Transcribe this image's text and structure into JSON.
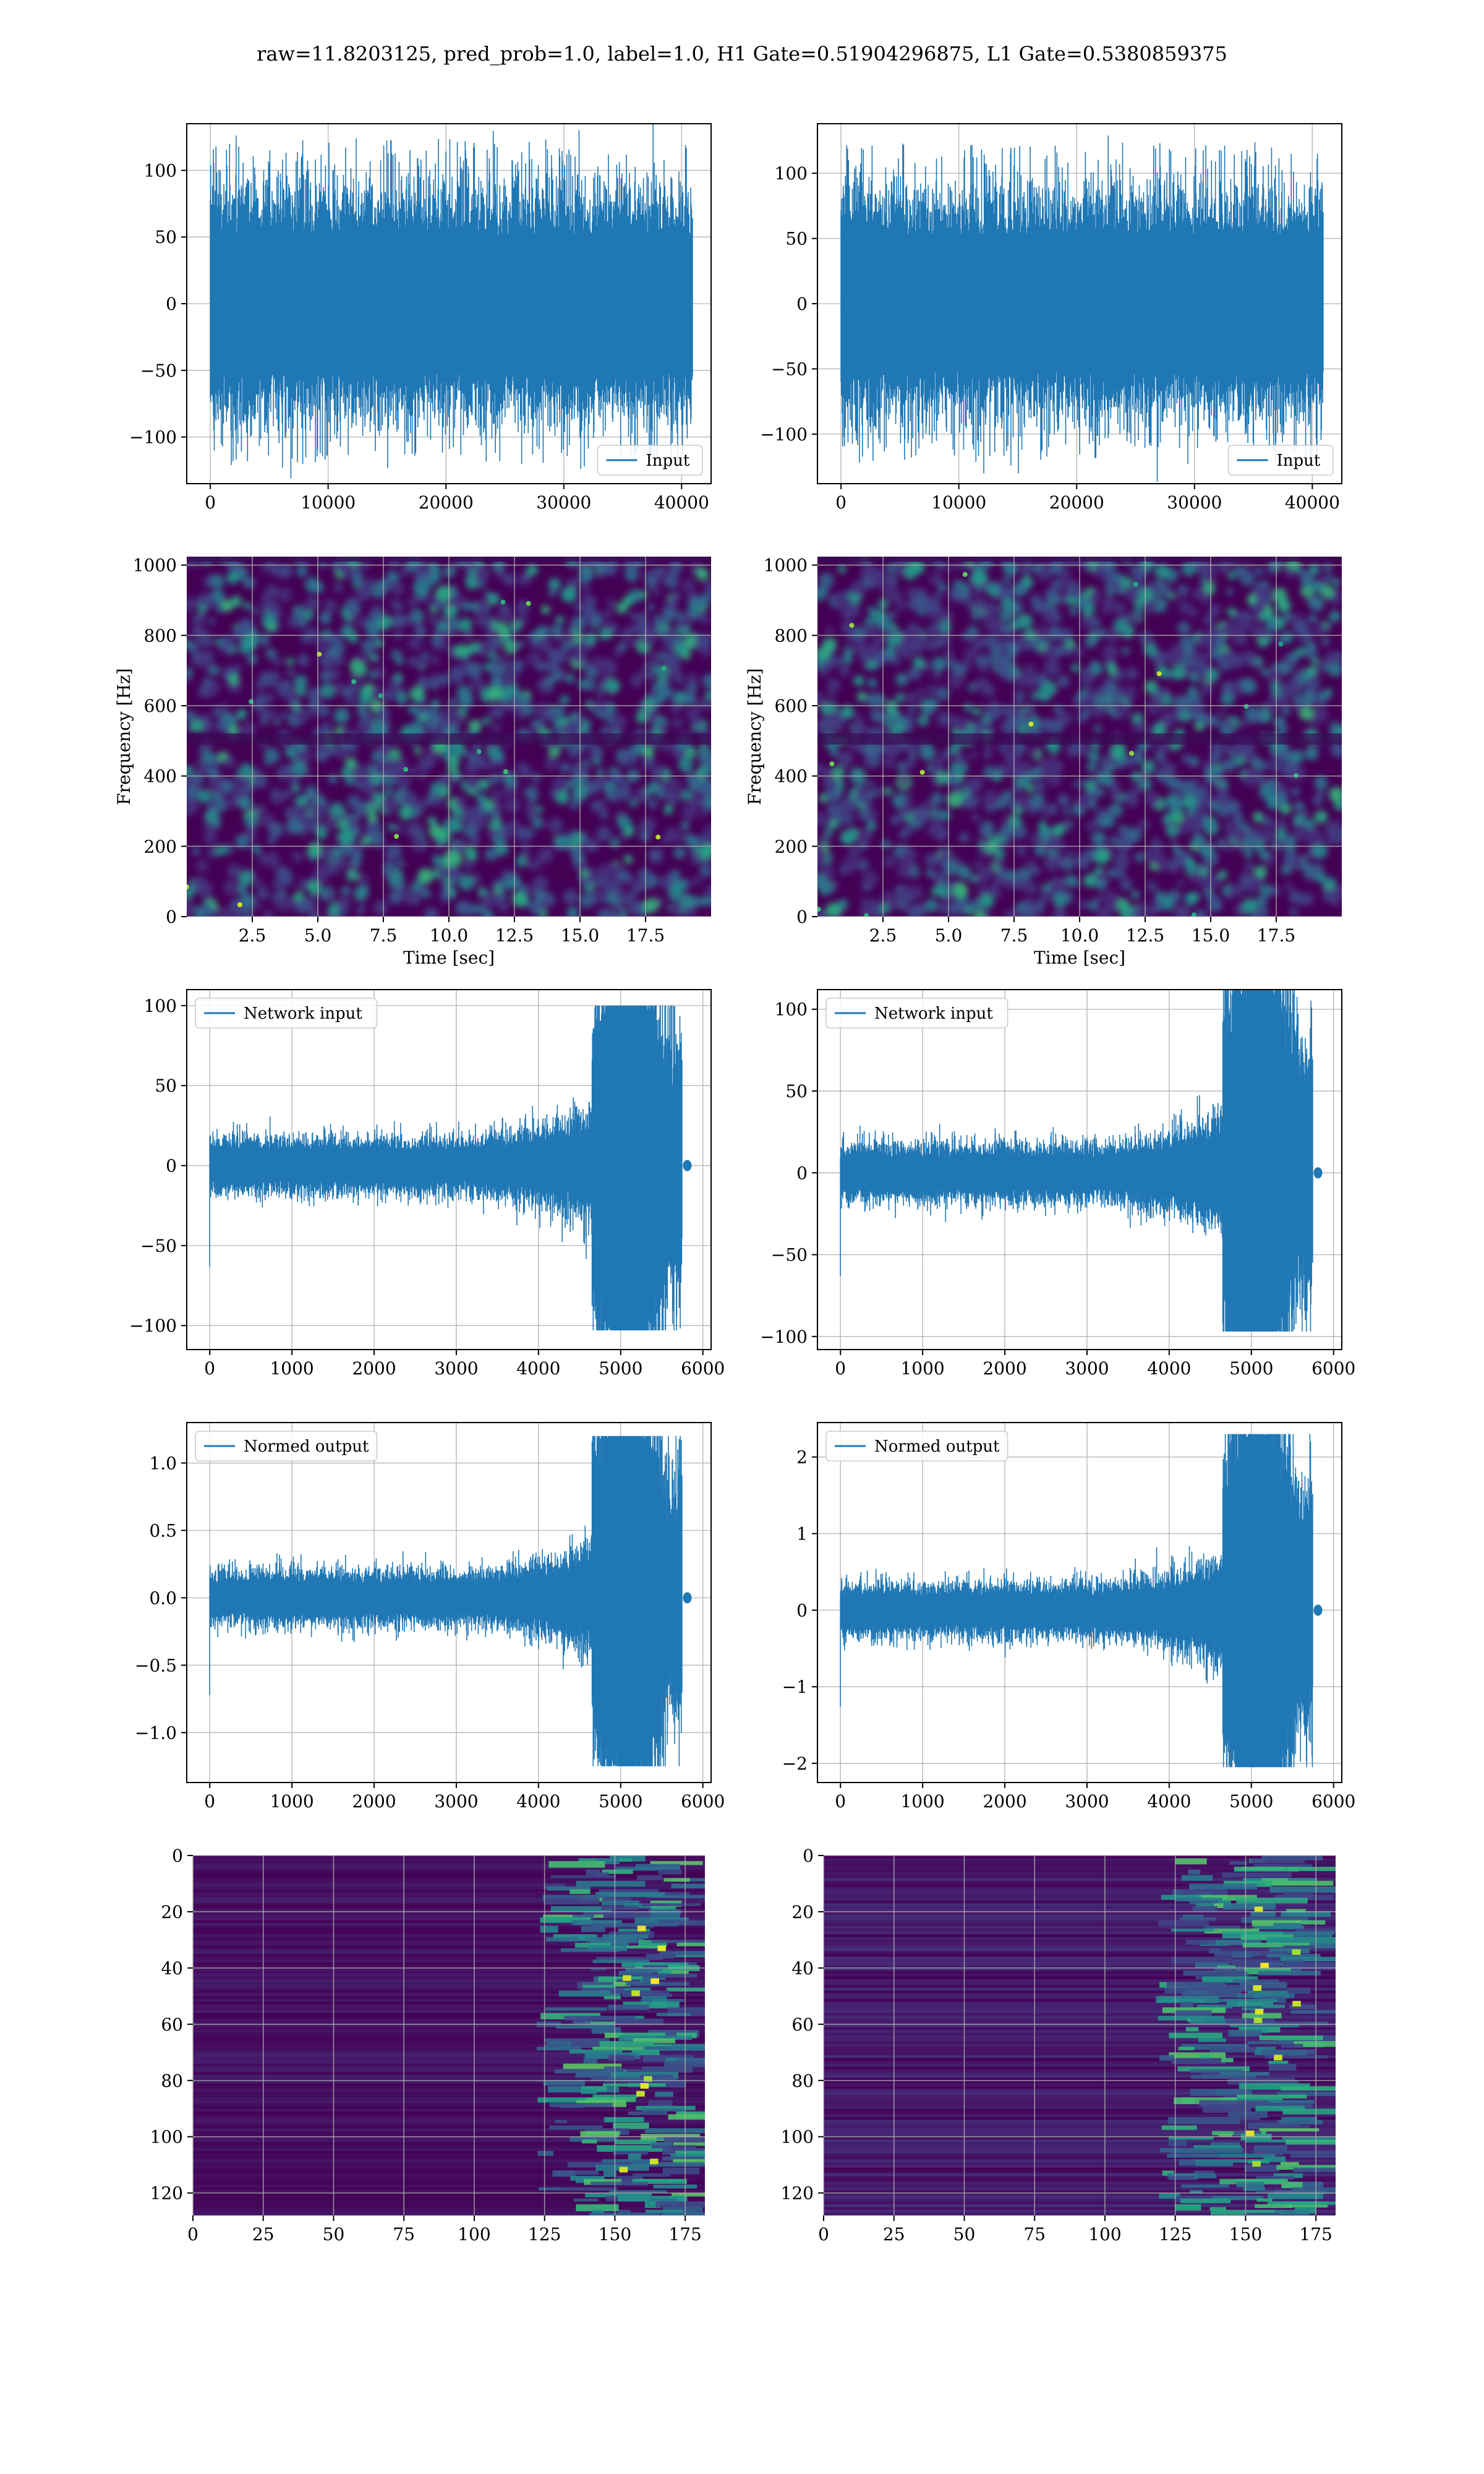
{
  "figure": {
    "suptitle": "raw=11.8203125, pred_prob=1.0, label=1.0, H1 Gate=0.51904296875, L1 Gate=0.5380859375"
  },
  "colors": {
    "line": "#1f77b4",
    "grid": "#b0b0b0",
    "viridis_low": "#440154"
  },
  "chart_data": [
    {
      "id": "h1-input",
      "type": "line",
      "legend": "Input",
      "legend_loc": "lower right",
      "grid": true,
      "xlim": [
        -2000,
        42500
      ],
      "ylim": [
        -135,
        135
      ],
      "xticks": [
        0,
        10000,
        20000,
        30000,
        40000
      ],
      "xtick_labels": [
        "0",
        "10000",
        "20000",
        "30000",
        "40000"
      ],
      "yticks": [
        -100,
        -50,
        0,
        50,
        100
      ],
      "ytick_labels": [
        "−100",
        "−50",
        "0",
        "50",
        "100"
      ],
      "signal": {
        "n": 40960,
        "noise_std": 30,
        "peak_max": 124,
        "peak_min": -124
      }
    },
    {
      "id": "l1-input",
      "type": "line",
      "legend": "Input",
      "legend_loc": "lower right",
      "grid": true,
      "xlim": [
        -2000,
        42500
      ],
      "ylim": [
        -138,
        138
      ],
      "xticks": [
        0,
        10000,
        20000,
        30000,
        40000
      ],
      "xtick_labels": [
        "0",
        "10000",
        "20000",
        "30000",
        "40000"
      ],
      "yticks": [
        -100,
        -50,
        0,
        50,
        100
      ],
      "ytick_labels": [
        "−100",
        "−50",
        "0",
        "50",
        "100"
      ],
      "signal": {
        "n": 40960,
        "noise_std": 30,
        "peak_max": 124,
        "peak_min": -122
      }
    },
    {
      "id": "h1-spectrogram",
      "type": "heatmap",
      "grid": true,
      "xlim": [
        0,
        20
      ],
      "ylim": [
        0,
        1024
      ],
      "xticks": [
        2.5,
        5.0,
        7.5,
        10.0,
        12.5,
        15.0,
        17.5
      ],
      "xtick_labels": [
        "2.5",
        "5.0",
        "7.5",
        "10.0",
        "12.5",
        "15.0",
        "17.5"
      ],
      "yticks": [
        0,
        200,
        400,
        600,
        800,
        1000
      ],
      "ytick_labels": [
        "0",
        "200",
        "400",
        "600",
        "800",
        "1000"
      ],
      "xlabel": "Time [sec]",
      "ylabel": "Frequency [Hz]"
    },
    {
      "id": "l1-spectrogram",
      "type": "heatmap",
      "grid": true,
      "xlim": [
        0,
        20
      ],
      "ylim": [
        0,
        1024
      ],
      "xticks": [
        2.5,
        5.0,
        7.5,
        10.0,
        12.5,
        15.0,
        17.5
      ],
      "xtick_labels": [
        "2.5",
        "5.0",
        "7.5",
        "10.0",
        "12.5",
        "15.0",
        "17.5"
      ],
      "yticks": [
        0,
        200,
        400,
        600,
        800,
        1000
      ],
      "ytick_labels": [
        "0",
        "200",
        "400",
        "600",
        "800",
        "1000"
      ],
      "xlabel": "Time [sec]",
      "ylabel": "Frequency [Hz]"
    },
    {
      "id": "h1-network-input",
      "type": "line",
      "legend": "Network input",
      "legend_loc": "upper left",
      "grid": true,
      "xlim": [
        -280,
        6100
      ],
      "ylim": [
        -115,
        110
      ],
      "xticks": [
        0,
        1000,
        2000,
        3000,
        4000,
        5000,
        6000
      ],
      "xtick_labels": [
        "0",
        "1000",
        "2000",
        "3000",
        "4000",
        "5000",
        "6000"
      ],
      "yticks": [
        -100,
        -50,
        0,
        50,
        100
      ],
      "ytick_labels": [
        "−100",
        "−50",
        "0",
        "50",
        "100"
      ],
      "signal": {
        "n": 5800,
        "base_std": 7,
        "rise_start": 3000,
        "burst_start": 4650,
        "burst_end": 5750,
        "burst_max": 100,
        "burst_min": -103
      }
    },
    {
      "id": "l1-network-input",
      "type": "line",
      "legend": "Network input",
      "legend_loc": "upper left",
      "grid": true,
      "xlim": [
        -280,
        6100
      ],
      "ylim": [
        -108,
        112
      ],
      "xticks": [
        0,
        1000,
        2000,
        3000,
        4000,
        5000,
        6000
      ],
      "xtick_labels": [
        "0",
        "1000",
        "2000",
        "3000",
        "4000",
        "5000",
        "6000"
      ],
      "yticks": [
        -100,
        -50,
        0,
        50,
        100
      ],
      "ytick_labels": [
        "−100",
        "−50",
        "0",
        "50",
        "100"
      ],
      "signal": {
        "n": 5800,
        "base_std": 7,
        "rise_start": 3000,
        "burst_start": 4650,
        "burst_end": 5750,
        "burst_max": 112,
        "burst_min": -97
      }
    },
    {
      "id": "h1-normed-output",
      "type": "line",
      "legend": "Normed output",
      "legend_loc": "upper left",
      "grid": true,
      "xlim": [
        -280,
        6100
      ],
      "ylim": [
        -1.37,
        1.3
      ],
      "xticks": [
        0,
        1000,
        2000,
        3000,
        4000,
        5000,
        6000
      ],
      "xtick_labels": [
        "0",
        "1000",
        "2000",
        "3000",
        "4000",
        "5000",
        "6000"
      ],
      "yticks": [
        -1.0,
        -0.5,
        0.0,
        0.5,
        1.0
      ],
      "ytick_labels": [
        "−1.0",
        "−0.5",
        "0.0",
        "0.5",
        "1.0"
      ],
      "signal": {
        "n": 5800,
        "base_std": 0.08,
        "rise_start": 3000,
        "burst_start": 4650,
        "burst_end": 5750,
        "burst_max": 1.2,
        "burst_min": -1.25
      }
    },
    {
      "id": "l1-normed-output",
      "type": "line",
      "legend": "Normed output",
      "legend_loc": "upper left",
      "grid": true,
      "xlim": [
        -280,
        6100
      ],
      "ylim": [
        -2.25,
        2.45
      ],
      "xticks": [
        0,
        1000,
        2000,
        3000,
        4000,
        5000,
        6000
      ],
      "xtick_labels": [
        "0",
        "1000",
        "2000",
        "3000",
        "4000",
        "5000",
        "6000"
      ],
      "yticks": [
        -2,
        -1,
        0,
        1,
        2
      ],
      "ytick_labels": [
        "−2",
        "−1",
        "0",
        "1",
        "2"
      ],
      "signal": {
        "n": 5800,
        "base_std": 0.14,
        "rise_start": 3000,
        "burst_start": 4650,
        "burst_end": 5750,
        "burst_max": 2.3,
        "burst_min": -2.05
      }
    },
    {
      "id": "h1-features",
      "type": "heatmap",
      "grid": true,
      "xlim": [
        0,
        182
      ],
      "ylim": [
        128,
        0
      ],
      "xticks": [
        0,
        25,
        50,
        75,
        100,
        125,
        150,
        175
      ],
      "xtick_labels": [
        "0",
        "25",
        "50",
        "75",
        "100",
        "125",
        "150",
        "175"
      ],
      "yticks": [
        0,
        20,
        40,
        60,
        80,
        100,
        120
      ],
      "ytick_labels": [
        "0",
        "20",
        "40",
        "60",
        "80",
        "100",
        "120"
      ]
    },
    {
      "id": "l1-features",
      "type": "heatmap",
      "grid": true,
      "xlim": [
        0,
        182
      ],
      "ylim": [
        128,
        0
      ],
      "xticks": [
        0,
        25,
        50,
        75,
        100,
        125,
        150,
        175
      ],
      "xtick_labels": [
        "0",
        "25",
        "50",
        "75",
        "100",
        "125",
        "150",
        "175"
      ],
      "yticks": [
        0,
        20,
        40,
        60,
        80,
        100,
        120
      ],
      "ytick_labels": [
        "0",
        "20",
        "40",
        "60",
        "80",
        "100",
        "120"
      ]
    }
  ]
}
